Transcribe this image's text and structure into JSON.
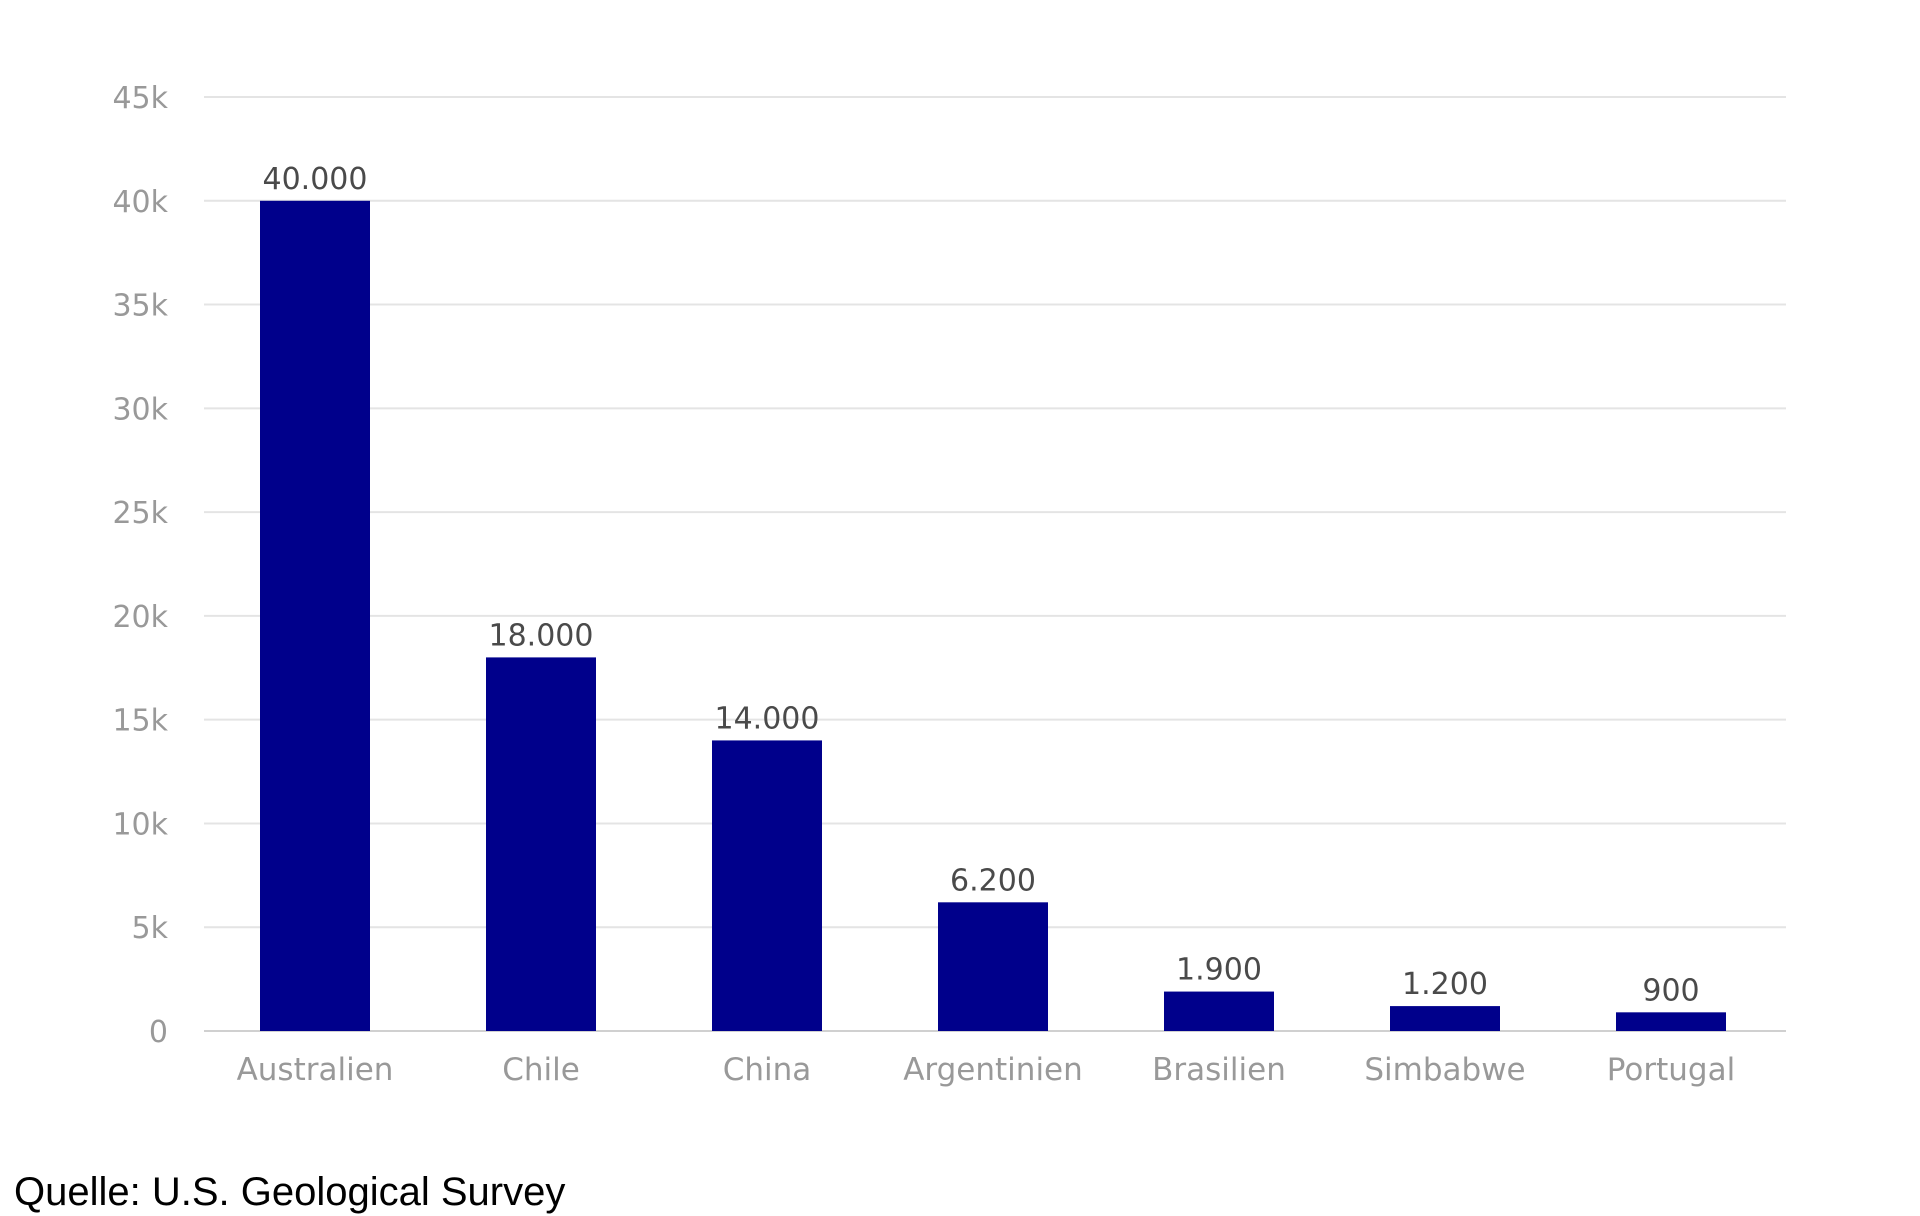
{
  "chart_data": {
    "type": "bar",
    "categories": [
      "Australien",
      "Chile",
      "China",
      "Argentinien",
      "Brasilien",
      "Simbabwe",
      "Portugal"
    ],
    "values": [
      40000,
      18000,
      14000,
      6200,
      1900,
      1200,
      900
    ],
    "value_labels": [
      "40.000",
      "18.000",
      "14.000",
      "6.200",
      "1.900",
      "1.200",
      "900"
    ],
    "title": "",
    "xlabel": "",
    "ylabel": "",
    "ylim": [
      0,
      45000
    ],
    "yticks": [
      0,
      5000,
      10000,
      15000,
      20000,
      25000,
      30000,
      35000,
      40000,
      45000
    ],
    "ytick_labels": [
      "0",
      "5k",
      "10k",
      "15k",
      "20k",
      "25k",
      "30k",
      "35k",
      "40k",
      "45k"
    ],
    "grid": true,
    "legend": "none",
    "bar_color": "#00008b"
  },
  "source_note": "Quelle: U.S. Geological Survey"
}
